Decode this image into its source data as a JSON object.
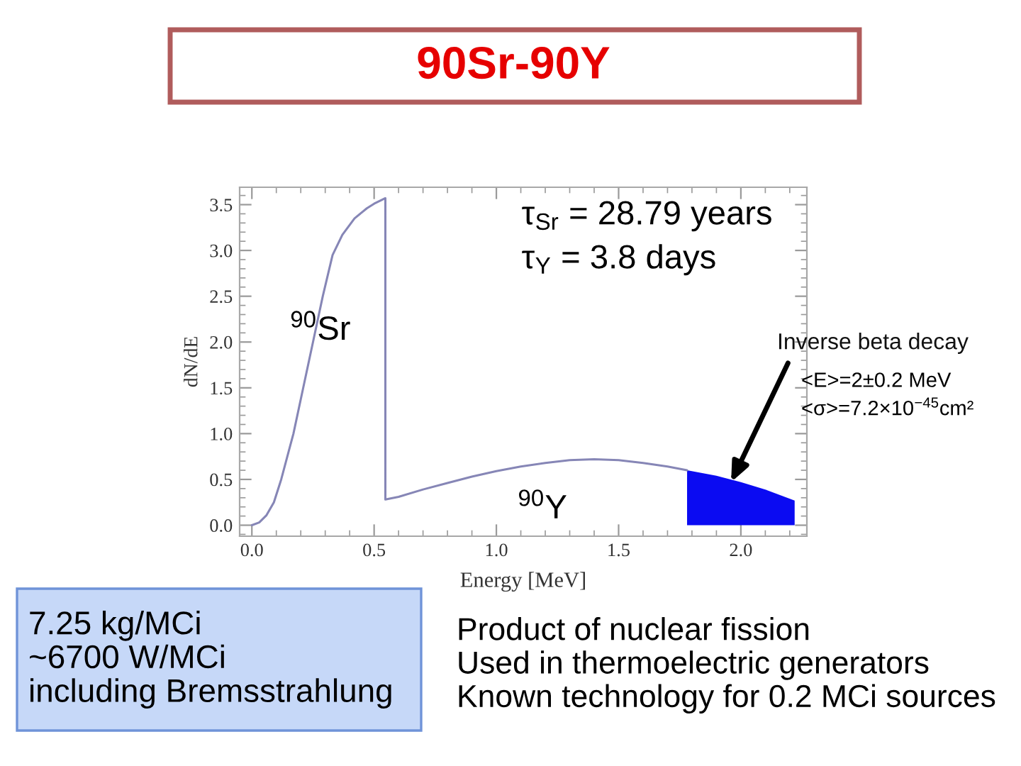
{
  "chart_data": {
    "type": "line",
    "title": "90Sr-90Y",
    "xlabel": "Energy [MeV]",
    "ylabel": "dN/dE",
    "series": [
      {
        "color": "#8686b6",
        "x": [
          0.0,
          0.03,
          0.06,
          0.09,
          0.12,
          0.15,
          0.17,
          0.21,
          0.25,
          0.29,
          0.33,
          0.37,
          0.42,
          0.47,
          0.5,
          0.546,
          0.546,
          0.6,
          0.7,
          0.8,
          0.9,
          1.0,
          1.1,
          1.2,
          1.3,
          1.4,
          1.5,
          1.6,
          1.7,
          1.78
        ],
        "values": [
          0.0,
          0.03,
          0.11,
          0.25,
          0.5,
          0.8,
          1.0,
          1.5,
          2.0,
          2.5,
          2.95,
          3.17,
          3.35,
          3.46,
          3.51,
          3.57,
          0.28,
          0.31,
          0.39,
          0.46,
          0.53,
          0.59,
          0.64,
          0.68,
          0.71,
          0.72,
          0.71,
          0.68,
          0.64,
          0.6
        ]
      },
      {
        "type": "area",
        "color": "#0b0bf2",
        "x": [
          1.78,
          1.9,
          2.0,
          2.1,
          2.22
        ],
        "values": [
          0.6,
          0.54,
          0.47,
          0.39,
          0.27
        ]
      }
    ],
    "xlim": [
      -0.05,
      2.27
    ],
    "ylim": [
      -0.12,
      3.69
    ],
    "xticks": [
      {
        "value": 0,
        "label": "0.0"
      },
      0.5,
      {
        "value": 1,
        "label": "1.0"
      },
      1.5,
      {
        "value": 2,
        "label": "2.0"
      }
    ],
    "yticks": [
      {
        "value": 0,
        "label": "0.0"
      },
      0.5,
      {
        "value": 1,
        "label": "1.0"
      },
      1.5,
      {
        "value": 2,
        "label": "2.0"
      },
      2.5,
      {
        "value": 3,
        "label": "3.0"
      },
      3.5
    ],
    "annotations": [
      "τ$_{Sr}$ = 28.79 years",
      "τ$_{Y}$ = 3.8 days",
      {
        "text": "$^{90}$Sr",
        "x": 0.28,
        "y": 2.12
      },
      "$^{90}$Y",
      {
        "text": "Inverse beta decay",
        "x": 1.96,
        "y": 0.47
      },
      "<E>=2±0.2 MeV",
      "<σ>=7.2×10$^{−45}$cm²",
      "7.25 kg/MCi\n~6700 W/MCi\nincluding Bremsstrahlung",
      "Product of nuclear fission\nUsed in thermoelectric generators\nKnown technology for 0.2 MCi sources"
    ]
  }
}
